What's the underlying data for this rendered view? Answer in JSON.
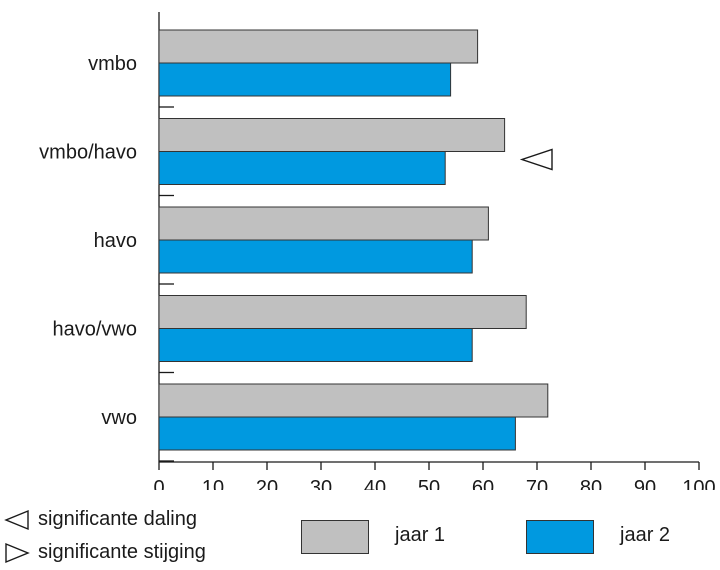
{
  "chart_data": {
    "type": "bar",
    "orientation": "horizontal",
    "categories": [
      "vmbo",
      "vmbo/havo",
      "havo",
      "havo/vwo",
      "vwo"
    ],
    "series": [
      {
        "name": "jaar 1",
        "color": "#c0c0c0",
        "values": [
          59,
          64,
          61,
          68,
          72
        ]
      },
      {
        "name": "jaar 2",
        "color": "#0099e0",
        "values": [
          54,
          53,
          58,
          58,
          66
        ]
      }
    ],
    "significance": [
      null,
      "daling",
      null,
      null,
      null
    ],
    "xlim": [
      0,
      100
    ],
    "xticks": [
      "0",
      "10",
      "20",
      "30",
      "40",
      "50",
      "60",
      "70",
      "80",
      "90",
      "100"
    ],
    "grid": false
  },
  "legend": {
    "sig_down_label": "significante daling",
    "sig_up_label": "significante stijging",
    "series1_label": "jaar 1",
    "series2_label": "jaar 2"
  }
}
